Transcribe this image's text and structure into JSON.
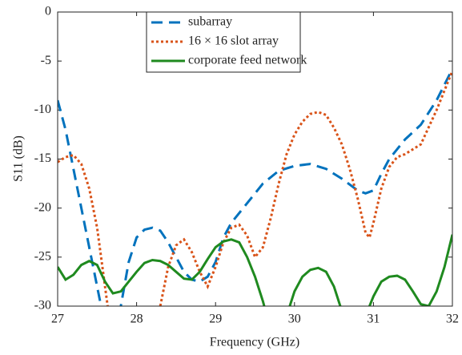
{
  "chart_data": {
    "type": "line",
    "xlabel": "Frequency (GHz)",
    "ylabel": "S11 (dB)",
    "xlim": [
      27,
      32
    ],
    "xticks": [
      27,
      28,
      29,
      30,
      31,
      32
    ],
    "ylim": [
      -30,
      0
    ],
    "yticks": [
      0,
      -5,
      -10,
      -15,
      -20,
      -25,
      -30
    ],
    "legend": "top-center",
    "series": [
      {
        "name": "subarray",
        "color": "#0072bd",
        "style": "dashed",
        "x": [
          27,
          27.1,
          27.2,
          27.3,
          27.4,
          27.5,
          27.6,
          27.7,
          27.8,
          27.9,
          28.0,
          28.1,
          28.2,
          28.3,
          28.4,
          28.5,
          28.6,
          28.7,
          28.8,
          28.9,
          29.0,
          29.1,
          29.2,
          29.4,
          29.6,
          29.8,
          30.0,
          30.2,
          30.4,
          30.6,
          30.8,
          30.9,
          31.0,
          31.1,
          31.2,
          31.4,
          31.6,
          31.8,
          32.0
        ],
        "values": [
          -9,
          -12,
          -16,
          -20,
          -24,
          -28,
          -32,
          -33,
          -30,
          -25.5,
          -23,
          -22.2,
          -22,
          -22.3,
          -23.5,
          -25,
          -26.5,
          -27.3,
          -27.5,
          -27,
          -25.5,
          -23,
          -21.5,
          -19.5,
          -17.5,
          -16.2,
          -15.7,
          -15.5,
          -16,
          -17,
          -18.2,
          -18.5,
          -18.2,
          -16.5,
          -15,
          -13,
          -11.5,
          -9,
          -5.8
        ]
      },
      {
        "name": "16 × 16 slot array",
        "color": "#d95319",
        "style": "dotted",
        "x": [
          27,
          27.1,
          27.2,
          27.3,
          27.4,
          27.5,
          27.6,
          27.7,
          28.2,
          28.3,
          28.4,
          28.5,
          28.6,
          28.7,
          28.8,
          28.9,
          29.0,
          29.1,
          29.2,
          29.3,
          29.4,
          29.5,
          29.6,
          29.7,
          29.8,
          29.9,
          30.0,
          30.1,
          30.2,
          30.3,
          30.4,
          30.5,
          30.6,
          30.7,
          30.8,
          30.9,
          30.95,
          31.0,
          31.1,
          31.2,
          31.3,
          31.4,
          31.6,
          31.8,
          32.0
        ],
        "values": [
          -15.3,
          -14.8,
          -14.6,
          -15.5,
          -18,
          -22,
          -28,
          -34,
          -34,
          -30,
          -26,
          -23.8,
          -23.2,
          -24.5,
          -26.5,
          -28,
          -26,
          -23.5,
          -22,
          -21.7,
          -22.8,
          -25,
          -24,
          -21,
          -17.5,
          -14.5,
          -12.5,
          -11.2,
          -10.4,
          -10.2,
          -10.5,
          -11.8,
          -13.5,
          -16,
          -19,
          -22.5,
          -23,
          -21.5,
          -18,
          -15.8,
          -14.8,
          -14.5,
          -13.5,
          -10,
          -6
        ]
      },
      {
        "name": "corporate feed network",
        "color": "#1f8a1f",
        "style": "solid",
        "x": [
          27,
          27.1,
          27.2,
          27.3,
          27.4,
          27.5,
          27.6,
          27.7,
          27.8,
          27.9,
          28.0,
          28.1,
          28.2,
          28.3,
          28.4,
          28.5,
          28.6,
          28.7,
          28.8,
          28.9,
          29.0,
          29.1,
          29.2,
          29.3,
          29.4,
          29.5,
          29.6,
          29.65,
          29.9,
          30.0,
          30.1,
          30.2,
          30.3,
          30.4,
          30.5,
          30.6,
          30.9,
          31.0,
          31.1,
          31.2,
          31.3,
          31.4,
          31.5,
          31.6,
          31.7,
          31.8,
          31.9,
          32.0
        ],
        "values": [
          -26,
          -27.3,
          -26.8,
          -25.8,
          -25.4,
          -25.8,
          -27.5,
          -28.7,
          -28.5,
          -27.5,
          -26.5,
          -25.6,
          -25.3,
          -25.4,
          -25.8,
          -26.5,
          -27.2,
          -27.3,
          -26.5,
          -25.2,
          -24,
          -23.4,
          -23.2,
          -23.5,
          -25,
          -27,
          -29.5,
          -31,
          -31,
          -28.5,
          -27,
          -26.3,
          -26.1,
          -26.5,
          -28,
          -30.5,
          -31,
          -29,
          -27.5,
          -27,
          -26.9,
          -27.3,
          -28.5,
          -29.8,
          -30,
          -28.5,
          -26,
          -22.7
        ]
      }
    ]
  }
}
